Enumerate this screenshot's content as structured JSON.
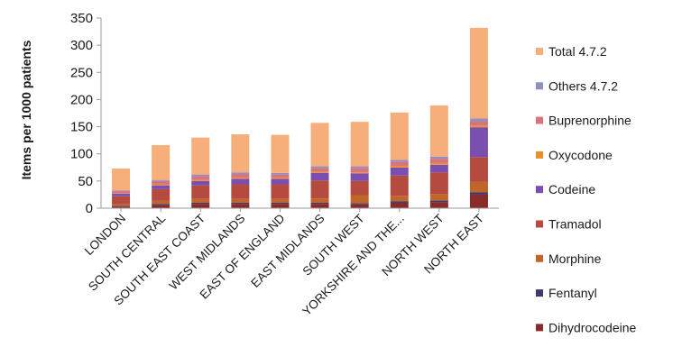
{
  "chart_data": {
    "type": "bar",
    "stacked": true,
    "title": "",
    "xlabel": "",
    "ylabel": "Items per 1000 patients",
    "ylim": [
      0,
      350
    ],
    "yticks": [
      0,
      50,
      100,
      150,
      200,
      250,
      300,
      350
    ],
    "grid": false,
    "legend_position": "right",
    "categories": [
      "LONDON",
      "SOUTH CENTRAL",
      "SOUTH EAST COAST",
      "WEST MIDLANDS",
      "EAST OF ENGLAND",
      "EAST MIDLANDS",
      "SOUTH WEST",
      "YORKSHIRE AND THE...",
      "NORTH WEST",
      "NORTH EAST"
    ],
    "series": [
      {
        "name": "Dihydrocodeine",
        "color": "#8B2A2A",
        "values": [
          3,
          6,
          8,
          8,
          8,
          8,
          7,
          10,
          11,
          25
        ]
      },
      {
        "name": "Fentanyl",
        "color": "#3E3A6E",
        "values": [
          1,
          2,
          2,
          2,
          2,
          2,
          2,
          3,
          3,
          4
        ]
      },
      {
        "name": "Morphine",
        "color": "#C0662A",
        "values": [
          3,
          6,
          7,
          7,
          7,
          8,
          15,
          10,
          12,
          20
        ]
      },
      {
        "name": "Tramadol",
        "color": "#B54A3E",
        "values": [
          15,
          21,
          25,
          27,
          27,
          33,
          26,
          37,
          40,
          45
        ]
      },
      {
        "name": "Codeine",
        "color": "#7A4FB0",
        "values": [
          5,
          7,
          8,
          10,
          10,
          14,
          14,
          15,
          14,
          55
        ]
      },
      {
        "name": "Oxycodone",
        "color": "#E8902E",
        "values": [
          1,
          2,
          2,
          2,
          2,
          2,
          2,
          3,
          3,
          3
        ]
      },
      {
        "name": "Buprenorphine",
        "color": "#D9737B",
        "values": [
          4,
          6,
          7,
          7,
          6,
          7,
          8,
          8,
          8,
          8
        ]
      },
      {
        "name": "Others 4.7.2",
        "color": "#8F8FC2",
        "values": [
          1,
          2,
          3,
          3,
          3,
          3,
          3,
          3,
          4,
          5
        ]
      },
      {
        "name": "Total 4.7.2",
        "color": "#F6AE7A",
        "values": [
          40,
          64,
          68,
          70,
          70,
          80,
          82,
          87,
          94,
          167
        ]
      }
    ]
  }
}
